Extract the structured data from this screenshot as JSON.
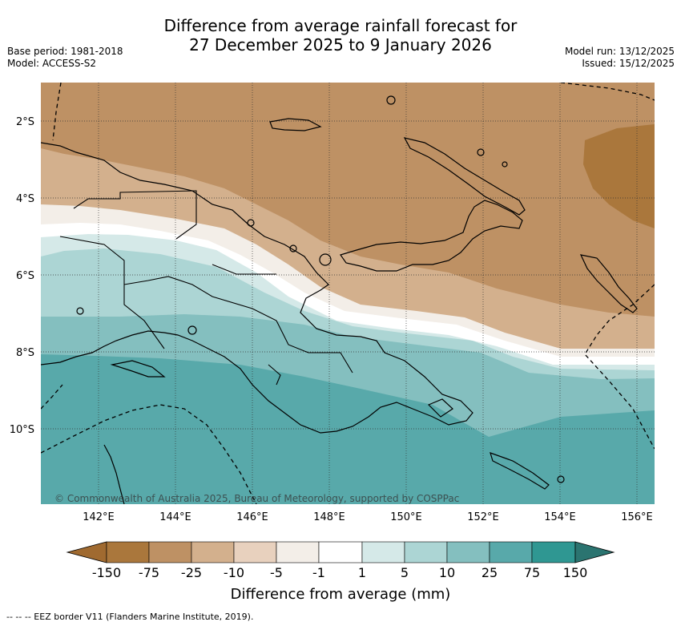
{
  "title": {
    "line1": "Difference from average rainfall forecast for",
    "line2": "27 December 2025 to 9 January 2026"
  },
  "meta": {
    "base_period": "Base period: 1981-2018",
    "model": "Model: ACCESS-S2",
    "model_run": "Model run: 13/12/2025",
    "issued": "Issued: 15/12/2025"
  },
  "map": {
    "lat_labels": [
      "2°S",
      "4°S",
      "6°S",
      "8°S",
      "10°S"
    ],
    "lon_labels": [
      "142°E",
      "144°E",
      "146°E",
      "148°E",
      "150°E",
      "152°E",
      "154°E",
      "156°E"
    ],
    "copyright": "© Commonwealth of Australia 2025, Bureau of Meteorology, supported by COSPPac"
  },
  "colorbar": {
    "title": "Difference from average (mm)",
    "tick_labels": [
      "-150",
      "-75",
      "-25",
      "-10",
      "-5",
      "-1",
      "1",
      "5",
      "10",
      "25",
      "75",
      "150"
    ],
    "colors": {
      "under": "#a06a30",
      "c1": "#aa773c",
      "c2": "#be9164",
      "c3": "#d3b08d",
      "c4": "#e8d1be",
      "c5": "#f3eee8",
      "c6": "#ffffff",
      "c7": "#d5e9e8",
      "c8": "#acd5d4",
      "c9": "#84bfbf",
      "c10": "#58a9aa",
      "c11": "#2f9792",
      "over": "#2b7470"
    }
  },
  "legend_footer": "--  --  -- EEZ border V11 (Flanders Marine Institute, 2019)."
}
